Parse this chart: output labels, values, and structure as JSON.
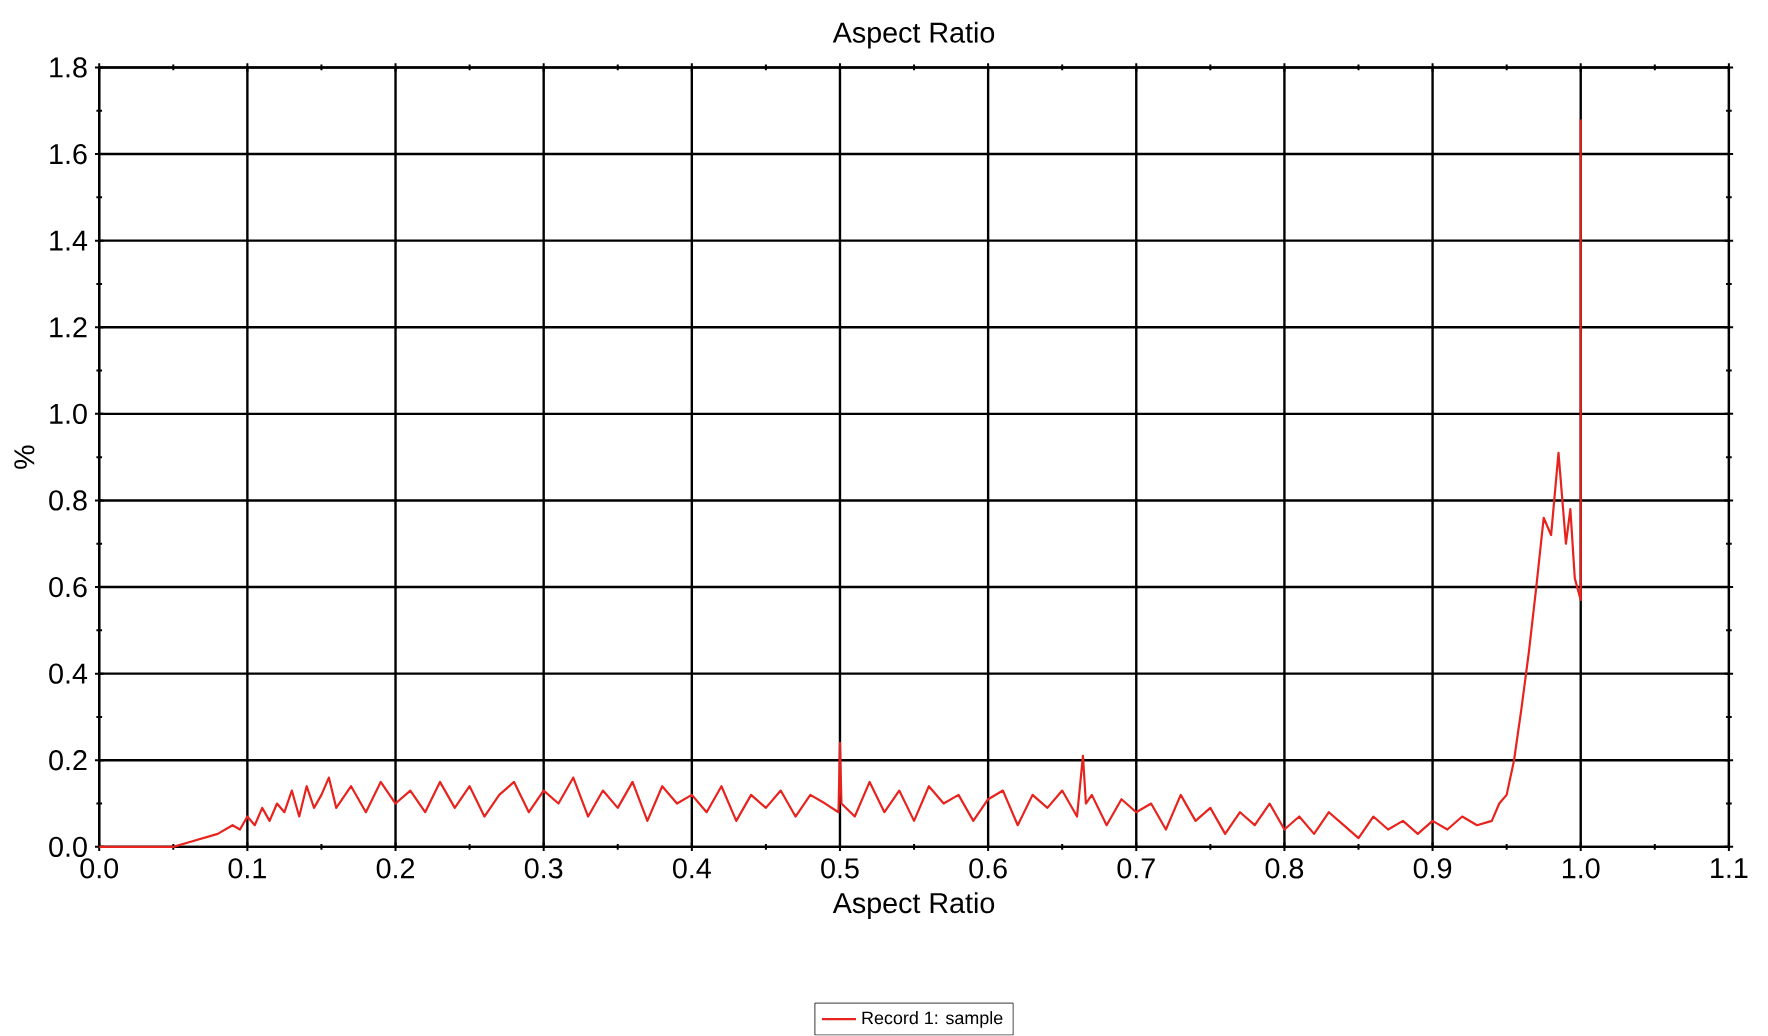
{
  "chart_data": {
    "type": "line",
    "title": "Aspect Ratio",
    "xlabel": "Aspect Ratio",
    "ylabel": "%",
    "xlim": [
      0,
      1.1
    ],
    "ylim": [
      0,
      1.8
    ],
    "xticks": [
      {
        "value": 0,
        "label": "0.0"
      },
      0.1,
      0.2,
      0.3,
      0.4,
      0.5,
      0.6,
      0.7,
      0.8,
      0.9,
      {
        "value": 1,
        "label": "1.0"
      },
      1.1
    ],
    "yticks": [
      {
        "value": 0,
        "label": "0.0"
      },
      0.2,
      0.4,
      0.6,
      0.8,
      {
        "value": 1,
        "label": "1.0"
      },
      1.2,
      1.4,
      1.6,
      1.8
    ],
    "grid": true,
    "legend": "bottom",
    "marker": "none",
    "line_style": "solid",
    "series": [
      {
        "name": "Record 1: sample",
        "color": "#e8231e",
        "x": [
          0,
          0.05,
          0.06,
          0.07,
          0.08,
          0.09,
          0.095,
          0.1,
          0.105,
          0.11,
          0.115,
          0.12,
          0.125,
          0.13,
          0.135,
          0.14,
          0.145,
          0.15,
          0.155,
          0.16,
          0.17,
          0.18,
          0.19,
          0.2,
          0.21,
          0.22,
          0.23,
          0.24,
          0.25,
          0.26,
          0.27,
          0.28,
          0.29,
          0.3,
          0.31,
          0.32,
          0.33,
          0.34,
          0.35,
          0.36,
          0.37,
          0.38,
          0.39,
          0.4,
          0.41,
          0.42,
          0.43,
          0.44,
          0.45,
          0.46,
          0.47,
          0.48,
          0.49,
          0.499,
          0.5,
          0.501,
          0.51,
          0.52,
          0.53,
          0.54,
          0.55,
          0.56,
          0.57,
          0.58,
          0.59,
          0.6,
          0.61,
          0.62,
          0.63,
          0.64,
          0.65,
          0.66,
          0.664,
          0.666,
          0.67,
          0.68,
          0.69,
          0.7,
          0.71,
          0.72,
          0.73,
          0.74,
          0.75,
          0.76,
          0.77,
          0.78,
          0.79,
          0.8,
          0.81,
          0.82,
          0.83,
          0.84,
          0.85,
          0.86,
          0.87,
          0.88,
          0.89,
          0.9,
          0.91,
          0.92,
          0.93,
          0.94,
          0.945,
          0.95,
          0.955,
          0.96,
          0.965,
          0.97,
          0.975,
          0.98,
          0.985,
          0.99,
          0.993,
          0.996,
          1,
          1
        ],
        "values": [
          0,
          0,
          0.01,
          0.02,
          0.03,
          0.05,
          0.04,
          0.07,
          0.05,
          0.09,
          0.06,
          0.1,
          0.08,
          0.13,
          0.07,
          0.14,
          0.09,
          0.12,
          0.16,
          0.09,
          0.14,
          0.08,
          0.15,
          0.1,
          0.13,
          0.08,
          0.15,
          0.09,
          0.14,
          0.07,
          0.12,
          0.15,
          0.08,
          0.13,
          0.1,
          0.16,
          0.07,
          0.13,
          0.09,
          0.15,
          0.06,
          0.14,
          0.1,
          0.12,
          0.08,
          0.14,
          0.06,
          0.12,
          0.09,
          0.13,
          0.07,
          0.12,
          0.1,
          0.08,
          0.24,
          0.1,
          0.07,
          0.15,
          0.08,
          0.13,
          0.06,
          0.14,
          0.1,
          0.12,
          0.06,
          0.11,
          0.13,
          0.05,
          0.12,
          0.09,
          0.13,
          0.07,
          0.21,
          0.1,
          0.12,
          0.05,
          0.11,
          0.08,
          0.1,
          0.04,
          0.12,
          0.06,
          0.09,
          0.03,
          0.08,
          0.05,
          0.1,
          0.04,
          0.07,
          0.03,
          0.08,
          0.05,
          0.02,
          0.07,
          0.04,
          0.06,
          0.03,
          0.06,
          0.04,
          0.07,
          0.05,
          0.06,
          0.1,
          0.12,
          0.2,
          0.32,
          0.45,
          0.6,
          0.76,
          0.72,
          0.91,
          0.7,
          0.78,
          0.62,
          0.57,
          1.68
        ]
      }
    ]
  }
}
